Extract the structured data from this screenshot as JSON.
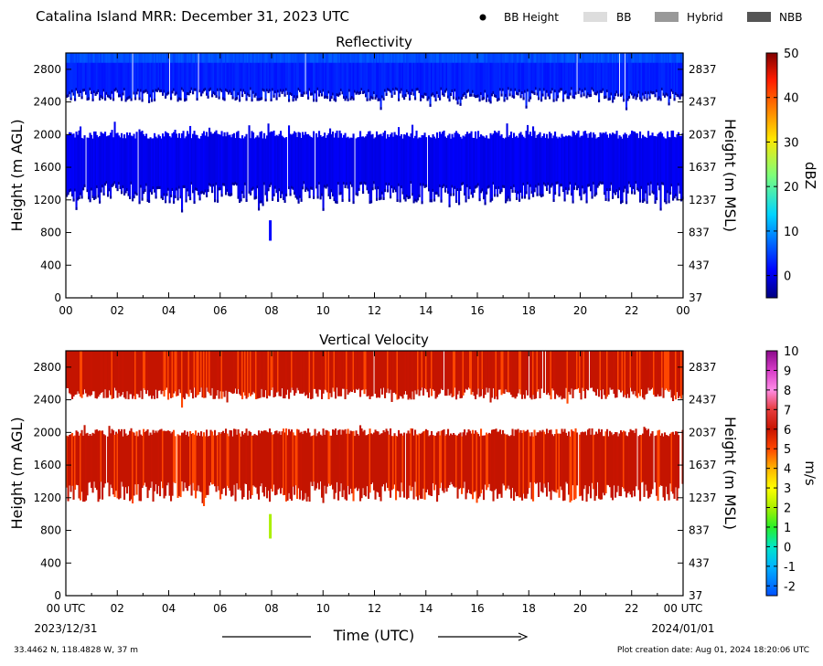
{
  "header": {
    "title": "Catalina Island MRR:  December 31, 2023 UTC",
    "legend": [
      {
        "label": "BB Height",
        "symbol": "dot",
        "color": "#000000"
      },
      {
        "label": "BB",
        "symbol": "swatch",
        "color": "#dddddd"
      },
      {
        "label": "Hybrid",
        "symbol": "swatch",
        "color": "#999999"
      },
      {
        "label": "NBB",
        "symbol": "swatch",
        "color": "#555555"
      }
    ]
  },
  "footer": {
    "xlabel": "Time (UTC)",
    "start_date": "2023/12/31",
    "end_date": "2024/01/01",
    "location": "33.4462 N, 118.4828 W, 37 m",
    "creation": "Plot creation date: Aug 01, 2024 18:20:06 UTC"
  },
  "chart_data": [
    {
      "type": "heatmap",
      "title": "Reflectivity",
      "ylabel": "Height (m AGL)",
      "y2label": "Height (m MSL)",
      "ylim": [
        0,
        3000
      ],
      "xlim": [
        0,
        24
      ],
      "xticks": [
        "00",
        "02",
        "04",
        "06",
        "08",
        "10",
        "12",
        "14",
        "16",
        "18",
        "20",
        "22",
        "00"
      ],
      "yticks": [
        0,
        400,
        800,
        1200,
        1600,
        2000,
        2400,
        2800
      ],
      "y2ticks": [
        "37",
        "437",
        "837",
        "1237",
        "1637",
        "2037",
        "2437",
        "2837"
      ],
      "colorbar": {
        "label": "dBZ",
        "range": [
          -5,
          50
        ],
        "ticks": [
          0,
          10,
          20,
          30,
          40,
          50
        ],
        "colormap": "jet"
      },
      "layers": [
        {
          "name": "upper",
          "bottom_range": [
            2400,
            2550
          ],
          "top": 3000,
          "value": 3.5,
          "top_fraction_value": 6
        },
        {
          "name": "lower",
          "bottom_range": [
            1150,
            1400
          ],
          "top_range": [
            1950,
            2050
          ],
          "value": 1
        }
      ],
      "feature": {
        "x": 7.95,
        "bottom": 700,
        "top": 950,
        "value": 2
      }
    },
    {
      "type": "heatmap",
      "title": "Vertical Velocity",
      "ylabel": "Height (m AGL)",
      "y2label": "Height (m MSL)",
      "ylim": [
        0,
        3000
      ],
      "xlim": [
        0,
        24
      ],
      "xticks": [
        "00 UTC",
        "02",
        "04",
        "06",
        "08",
        "10",
        "12",
        "14",
        "16",
        "18",
        "20",
        "22",
        "00 UTC"
      ],
      "yticks": [
        0,
        400,
        800,
        1200,
        1600,
        2000,
        2400,
        2800
      ],
      "y2ticks": [
        "37",
        "437",
        "837",
        "1237",
        "1637",
        "2037",
        "2437",
        "2837"
      ],
      "colorbar": {
        "label": "m/s",
        "range": [
          -2.5,
          10
        ],
        "ticks": [
          -2,
          -1,
          0,
          1,
          2,
          3,
          4,
          5,
          6,
          7,
          8,
          9,
          10
        ]
      },
      "layers": [
        {
          "name": "upper",
          "bottom_range": [
            2400,
            2550
          ],
          "top": 3000,
          "value": 6
        },
        {
          "name": "lower",
          "bottom_range": [
            1150,
            1400
          ],
          "top_range": [
            1950,
            2050
          ],
          "value": 6
        }
      ],
      "feature": {
        "x": 7.95,
        "bottom": 700,
        "top": 1000,
        "value": 1.5
      }
    }
  ]
}
